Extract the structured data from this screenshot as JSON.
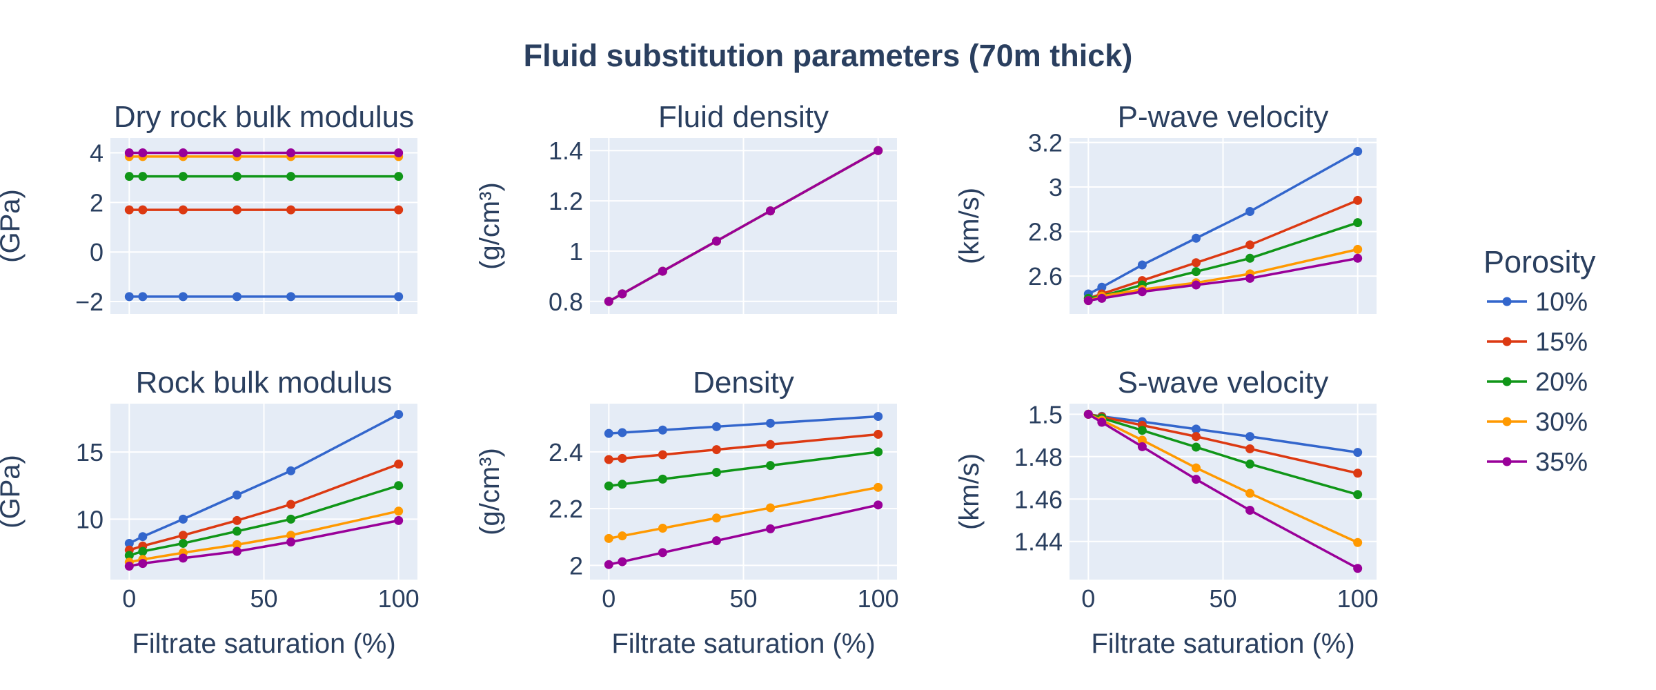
{
  "chart_data": {
    "type": "line",
    "title": "Fluid substitution parameters (70m thick)",
    "legend": {
      "title": "Porosity",
      "placement": "right",
      "entries": [
        "10%",
        "15%",
        "20%",
        "30%",
        "35%"
      ]
    },
    "colors": [
      "#3366cc",
      "#dc3912",
      "#109618",
      "#ff9900",
      "#990099"
    ],
    "x": [
      0,
      5,
      20,
      40,
      60,
      100
    ],
    "xlabel": "Filtrate saturation (%)",
    "xlim": [
      -7,
      107
    ],
    "xticks": [
      0,
      50,
      100
    ],
    "grid": true,
    "subplots": [
      {
        "title": "Dry rock bulk modulus",
        "ylabel": "(GPa)",
        "ylim": [
          -2.5,
          4.6
        ],
        "yticks": [
          -2,
          0,
          2,
          4
        ],
        "ytick_labels": [
          "−2",
          "0",
          "2",
          "4"
        ],
        "series": [
          {
            "name": "10%",
            "values": [
              -1.8,
              -1.8,
              -1.8,
              -1.8,
              -1.8,
              -1.8
            ]
          },
          {
            "name": "15%",
            "values": [
              1.7,
              1.7,
              1.7,
              1.7,
              1.7,
              1.7
            ]
          },
          {
            "name": "20%",
            "values": [
              3.05,
              3.05,
              3.05,
              3.05,
              3.05,
              3.05
            ]
          },
          {
            "name": "30%",
            "values": [
              3.85,
              3.85,
              3.85,
              3.85,
              3.85,
              3.85
            ]
          },
          {
            "name": "35%",
            "values": [
              4.0,
              4.0,
              4.0,
              4.0,
              4.0,
              4.0
            ]
          }
        ]
      },
      {
        "title": "Fluid density",
        "ylabel": "(g/cm³)",
        "ylim": [
          0.75,
          1.45
        ],
        "yticks": [
          0.8,
          1.0,
          1.2,
          1.4
        ],
        "ytick_labels": [
          "0.8",
          "1",
          "1.2",
          "1.4"
        ],
        "series": [
          {
            "name": "10%",
            "values": [
              0.8,
              0.83,
              0.92,
              1.04,
              1.16,
              1.4
            ]
          },
          {
            "name": "15%",
            "values": [
              0.8,
              0.83,
              0.92,
              1.04,
              1.16,
              1.4
            ]
          },
          {
            "name": "20%",
            "values": [
              0.8,
              0.83,
              0.92,
              1.04,
              1.16,
              1.4
            ]
          },
          {
            "name": "30%",
            "values": [
              0.8,
              0.83,
              0.92,
              1.04,
              1.16,
              1.4
            ]
          },
          {
            "name": "35%",
            "values": [
              0.8,
              0.83,
              0.92,
              1.04,
              1.16,
              1.4
            ]
          }
        ]
      },
      {
        "title": "P-wave velocity",
        "ylabel": "(km/s)",
        "ylim": [
          2.43,
          3.22
        ],
        "yticks": [
          2.6,
          2.8,
          3.0,
          3.2
        ],
        "ytick_labels": [
          "2.6",
          "2.8",
          "3",
          "3.2"
        ],
        "series": [
          {
            "name": "10%",
            "values": [
              2.52,
              2.55,
              2.65,
              2.77,
              2.89,
              3.16
            ]
          },
          {
            "name": "15%",
            "values": [
              2.5,
              2.52,
              2.58,
              2.66,
              2.74,
              2.94
            ]
          },
          {
            "name": "20%",
            "values": [
              2.5,
              2.51,
              2.56,
              2.62,
              2.68,
              2.84
            ]
          },
          {
            "name": "30%",
            "values": [
              2.49,
              2.51,
              2.54,
              2.57,
              2.61,
              2.72
            ]
          },
          {
            "name": "35%",
            "values": [
              2.49,
              2.5,
              2.53,
              2.56,
              2.59,
              2.68
            ]
          }
        ]
      },
      {
        "title": "Rock bulk modulus",
        "ylabel": "(GPa)",
        "ylim": [
          5.5,
          18.6
        ],
        "yticks": [
          10,
          15
        ],
        "ytick_labels": [
          "10",
          "15"
        ],
        "series": [
          {
            "name": "10%",
            "values": [
              8.2,
              8.7,
              10.0,
              11.8,
              13.6,
              17.8
            ]
          },
          {
            "name": "15%",
            "values": [
              7.7,
              8.0,
              8.8,
              9.9,
              11.1,
              14.1
            ]
          },
          {
            "name": "20%",
            "values": [
              7.3,
              7.6,
              8.2,
              9.1,
              10.0,
              12.5
            ]
          },
          {
            "name": "30%",
            "values": [
              6.8,
              7.0,
              7.5,
              8.1,
              8.8,
              10.6
            ]
          },
          {
            "name": "35%",
            "values": [
              6.5,
              6.7,
              7.1,
              7.6,
              8.3,
              9.9
            ]
          }
        ]
      },
      {
        "title": "Density",
        "ylabel": "(g/cm³)",
        "ylim": [
          1.95,
          2.57
        ],
        "yticks": [
          2.0,
          2.2,
          2.4
        ],
        "ytick_labels": [
          "2",
          "2.2",
          "2.4"
        ],
        "series": [
          {
            "name": "10%",
            "values": [
              2.465,
              2.468,
              2.477,
              2.489,
              2.501,
              2.525
            ]
          },
          {
            "name": "15%",
            "values": [
              2.373,
              2.377,
              2.39,
              2.408,
              2.426,
              2.462
            ]
          },
          {
            "name": "20%",
            "values": [
              2.28,
              2.286,
              2.304,
              2.328,
              2.352,
              2.4
            ]
          },
          {
            "name": "30%",
            "values": [
              2.095,
              2.104,
              2.131,
              2.167,
              2.203,
              2.275
            ]
          },
          {
            "name": "35%",
            "values": [
              2.003,
              2.013,
              2.045,
              2.087,
              2.129,
              2.213
            ]
          }
        ]
      },
      {
        "title": "S-wave velocity",
        "ylabel": "(km/s)",
        "ylim": [
          1.422,
          1.505
        ],
        "yticks": [
          1.44,
          1.46,
          1.48,
          1.5
        ],
        "ytick_labels": [
          "1.44",
          "1.46",
          "1.48",
          "1.5"
        ],
        "series": [
          {
            "name": "10%",
            "values": [
              1.5,
              1.499,
              1.4965,
              1.493,
              1.4895,
              1.482
            ]
          },
          {
            "name": "15%",
            "values": [
              1.5,
              1.4988,
              1.4948,
              1.4895,
              1.4837,
              1.4722
            ]
          },
          {
            "name": "20%",
            "values": [
              1.5,
              1.4982,
              1.4924,
              1.4845,
              1.4765,
              1.4621
            ]
          },
          {
            "name": "30%",
            "values": [
              1.5,
              1.4972,
              1.4878,
              1.4747,
              1.4627,
              1.4395
            ]
          },
          {
            "name": "35%",
            "values": [
              1.5,
              1.4962,
              1.4847,
              1.4693,
              1.4547,
              1.4273
            ]
          }
        ]
      }
    ]
  }
}
